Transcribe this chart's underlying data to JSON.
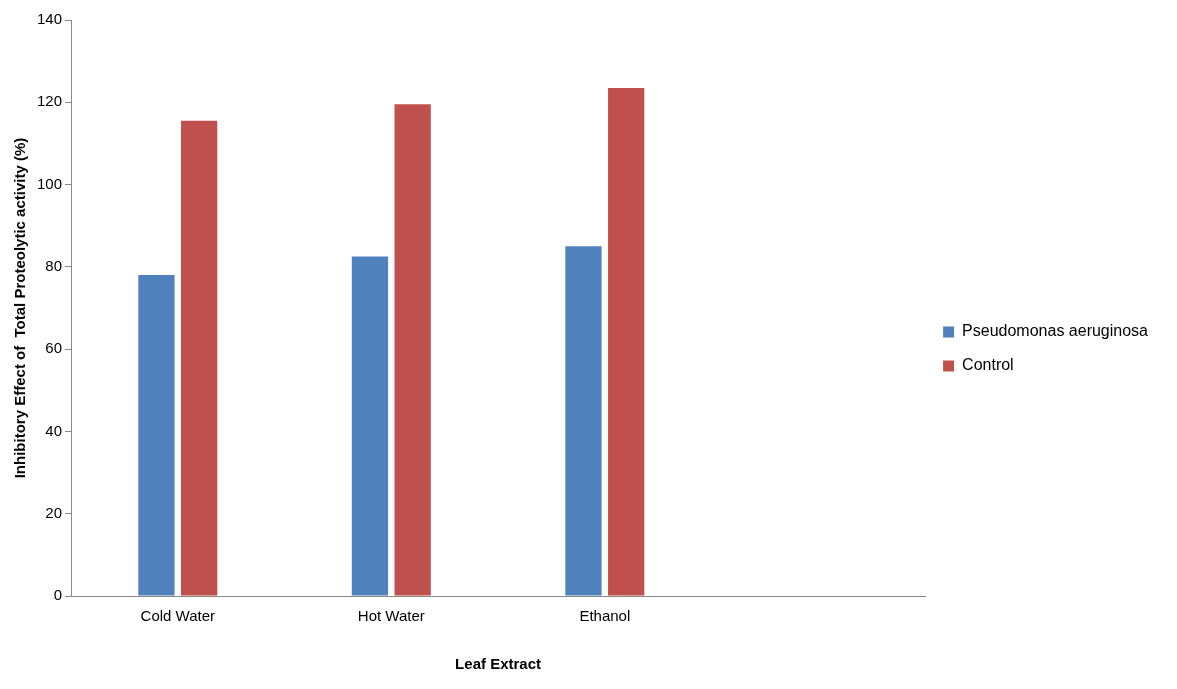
{
  "chart_data": {
    "type": "bar",
    "xlabel": "Leaf Extract",
    "ylabel": "Inhibitory Effect of  Total Proteolytic activity (%)",
    "categories": [
      "Cold Water",
      "Hot Water",
      "Ethanol",
      null
    ],
    "series": [
      {
        "name": "Pseudomonas aeruginosa",
        "color": "#4f81bd",
        "values": [
          78,
          82.5,
          85,
          null
        ]
      },
      {
        "name": "Control",
        "color": "#c0504d",
        "values": [
          115.5,
          119.5,
          123.5,
          null
        ]
      }
    ],
    "ylim": [
      0,
      140
    ],
    "yticks": [
      0,
      20,
      40,
      60,
      80,
      100,
      120,
      140
    ],
    "grid": false,
    "legend": "right"
  }
}
